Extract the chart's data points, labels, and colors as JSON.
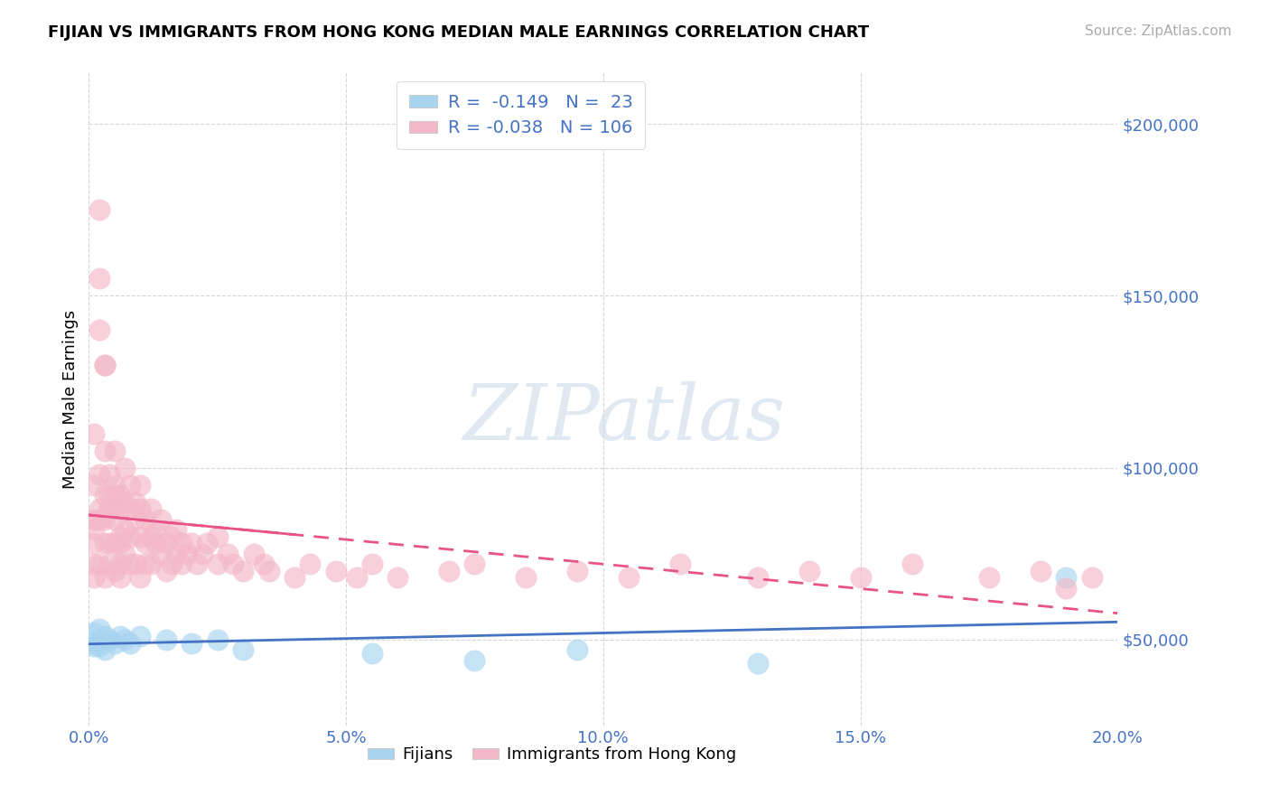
{
  "title": "FIJIAN VS IMMIGRANTS FROM HONG KONG MEDIAN MALE EARNINGS CORRELATION CHART",
  "source": "Source: ZipAtlas.com",
  "ylabel": "Median Male Earnings",
  "xlim": [
    0.0,
    0.2
  ],
  "ylim": [
    25000,
    215000
  ],
  "xtick_labels": [
    "0.0%",
    "5.0%",
    "10.0%",
    "15.0%",
    "20.0%"
  ],
  "xtick_vals": [
    0.0,
    0.05,
    0.1,
    0.15,
    0.2
  ],
  "ytick_vals": [
    50000,
    100000,
    150000,
    200000
  ],
  "ytick_labels": [
    "$50,000",
    "$100,000",
    "$150,000",
    "$200,000"
  ],
  "fijian_color": "#a8d4f0",
  "hk_color": "#f4b8c8",
  "fijian_line_color": "#4472C4",
  "hk_line_color": "#e8538a",
  "background_color": "#FFFFFF",
  "grid_color": "#CCCCCC",
  "fijian_scatter_x": [
    0.001,
    0.001,
    0.001,
    0.002,
    0.002,
    0.002,
    0.003,
    0.003,
    0.004,
    0.005,
    0.006,
    0.007,
    0.008,
    0.01,
    0.015,
    0.02,
    0.025,
    0.03,
    0.055,
    0.075,
    0.095,
    0.13,
    0.19
  ],
  "fijian_scatter_y": [
    52000,
    49000,
    48000,
    50000,
    53000,
    48000,
    51000,
    47000,
    50000,
    49000,
    51000,
    50000,
    49000,
    51000,
    50000,
    49000,
    50000,
    47000,
    46000,
    44000,
    47000,
    43000,
    68000
  ],
  "hk_scatter_x": [
    0.001,
    0.001,
    0.001,
    0.001,
    0.001,
    0.001,
    0.001,
    0.002,
    0.002,
    0.002,
    0.002,
    0.002,
    0.002,
    0.003,
    0.003,
    0.003,
    0.003,
    0.003,
    0.003,
    0.004,
    0.004,
    0.004,
    0.004,
    0.004,
    0.005,
    0.005,
    0.005,
    0.005,
    0.005,
    0.006,
    0.006,
    0.006,
    0.006,
    0.006,
    0.007,
    0.007,
    0.007,
    0.007,
    0.008,
    0.008,
    0.008,
    0.008,
    0.009,
    0.009,
    0.009,
    0.01,
    0.01,
    0.01,
    0.01,
    0.011,
    0.011,
    0.011,
    0.012,
    0.012,
    0.012,
    0.013,
    0.013,
    0.014,
    0.014,
    0.015,
    0.015,
    0.016,
    0.016,
    0.017,
    0.017,
    0.018,
    0.018,
    0.019,
    0.02,
    0.021,
    0.022,
    0.023,
    0.025,
    0.025,
    0.027,
    0.028,
    0.03,
    0.032,
    0.034,
    0.035,
    0.04,
    0.043,
    0.048,
    0.052,
    0.055,
    0.06,
    0.07,
    0.075,
    0.085,
    0.095,
    0.105,
    0.115,
    0.13,
    0.14,
    0.15,
    0.16,
    0.175,
    0.185,
    0.19,
    0.195,
    0.002,
    0.003,
    0.004,
    0.005,
    0.006
  ],
  "hk_scatter_y": [
    78000,
    95000,
    68000,
    82000,
    110000,
    72000,
    85000,
    175000,
    85000,
    98000,
    72000,
    155000,
    88000,
    92000,
    78000,
    105000,
    68000,
    85000,
    130000,
    88000,
    72000,
    98000,
    78000,
    92000,
    85000,
    70000,
    95000,
    78000,
    105000,
    88000,
    72000,
    80000,
    92000,
    68000,
    82000,
    90000,
    75000,
    100000,
    88000,
    72000,
    80000,
    95000,
    85000,
    72000,
    90000,
    80000,
    68000,
    88000,
    95000,
    78000,
    85000,
    72000,
    80000,
    88000,
    72000,
    78000,
    82000,
    75000,
    85000,
    78000,
    70000,
    80000,
    72000,
    75000,
    82000,
    78000,
    72000,
    75000,
    78000,
    72000,
    75000,
    78000,
    72000,
    80000,
    75000,
    72000,
    70000,
    75000,
    72000,
    70000,
    68000,
    72000,
    70000,
    68000,
    72000,
    68000,
    70000,
    72000,
    68000,
    70000,
    68000,
    72000,
    68000,
    70000,
    68000,
    72000,
    68000,
    70000,
    65000,
    68000,
    140000,
    130000,
    88000,
    92000,
    78000
  ]
}
